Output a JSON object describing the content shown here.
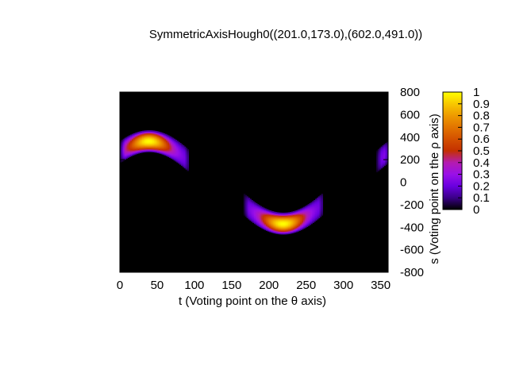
{
  "chart_data": {
    "type": "heatmap",
    "title": "SymmetricAxisHough0((201.0,173.0),(602.0,491.0))",
    "xlabel": "t (Voting point on the θ axis)",
    "ylabel": "s (Voting point on the ρ axis)",
    "xlim": [
      0,
      360
    ],
    "ylim": [
      -800,
      800
    ],
    "x_ticks": [
      "0",
      "50",
      "100",
      "150",
      "200",
      "250",
      "300",
      "350"
    ],
    "x_tick_values": [
      0,
      50,
      100,
      150,
      200,
      250,
      300,
      350
    ],
    "y_ticks": [
      "800",
      "600",
      "400",
      "200",
      "0",
      "-200",
      "-400",
      "-600",
      "-800"
    ],
    "y_tick_values": [
      800,
      600,
      400,
      200,
      0,
      -200,
      -400,
      -600,
      -800
    ],
    "colorbar": {
      "range": [
        0,
        1
      ],
      "ticks": [
        "1",
        "0.9",
        "0.8",
        "0.7",
        "0.6",
        "0.5",
        "0.4",
        "0.3",
        "0.2",
        "0.1",
        "0"
      ],
      "tick_values": [
        1,
        0.9,
        0.8,
        0.7,
        0.6,
        0.5,
        0.4,
        0.3,
        0.2,
        0.1,
        0
      ]
    },
    "background_value": 0,
    "bands": [
      {
        "t_range": [
          0,
          92
        ],
        "peak_t": 38,
        "peak_s": 366,
        "center_of_curve_t": 38,
        "amplitude_s": 366,
        "half_width_s": 95,
        "peak_value": 1.0
      },
      {
        "t_range": [
          166,
          272
        ],
        "peak_t": 218,
        "peak_s": -366,
        "center_of_curve_t": 218,
        "amplitude_s": -366,
        "half_width_s": 95,
        "peak_value": 1.0
      },
      {
        "t_range": [
          344,
          360
        ],
        "peak_t": 398,
        "peak_s": 366,
        "center_of_curve_t": 398,
        "amplitude_s": 366,
        "half_width_s": 95,
        "peak_value": 1.0
      }
    ],
    "grid": false
  }
}
